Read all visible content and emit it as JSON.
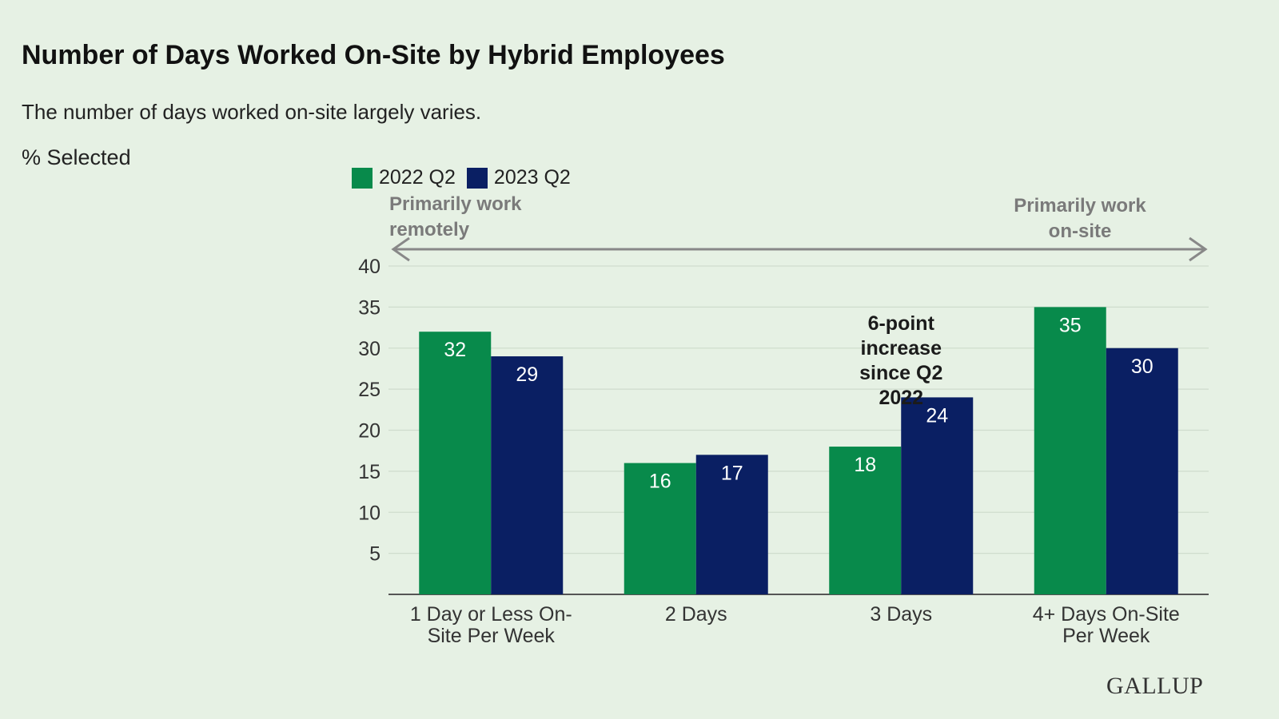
{
  "header": {
    "title": "Number of Days Worked On-Site by Hybrid Employees",
    "subtitle": "The number of days worked on-site largely varies.",
    "unit_label": "% Selected"
  },
  "brand": {
    "name": "GALLUP"
  },
  "colors": {
    "series_2022": "#088a4b",
    "series_2023": "#0a1f63",
    "axis": "#555555",
    "grid": "#cfdccd",
    "arrow": "#888888"
  },
  "chart_data": {
    "type": "bar",
    "categories": [
      [
        "1 Day or Less On-",
        "Site Per Week"
      ],
      [
        "2 Days"
      ],
      [
        "3 Days"
      ],
      [
        "4+ Days On-Site",
        "Per Week"
      ]
    ],
    "series": [
      {
        "name": "2022 Q2",
        "values": [
          32,
          16,
          18,
          35
        ]
      },
      {
        "name": "2023 Q2",
        "values": [
          29,
          17,
          24,
          30
        ]
      }
    ],
    "ylim": [
      0,
      40
    ],
    "yticks": [
      5,
      10,
      15,
      20,
      25,
      30,
      35,
      40
    ],
    "grid": true,
    "legend_position": "top-left",
    "scale_labels": {
      "left": [
        "Primarily work",
        "remotely"
      ],
      "right": [
        "Primarily work",
        "on-site"
      ]
    },
    "annotation": {
      "text": [
        "6-point",
        "increase",
        "since Q2",
        "2022"
      ],
      "category_index": 2
    }
  }
}
